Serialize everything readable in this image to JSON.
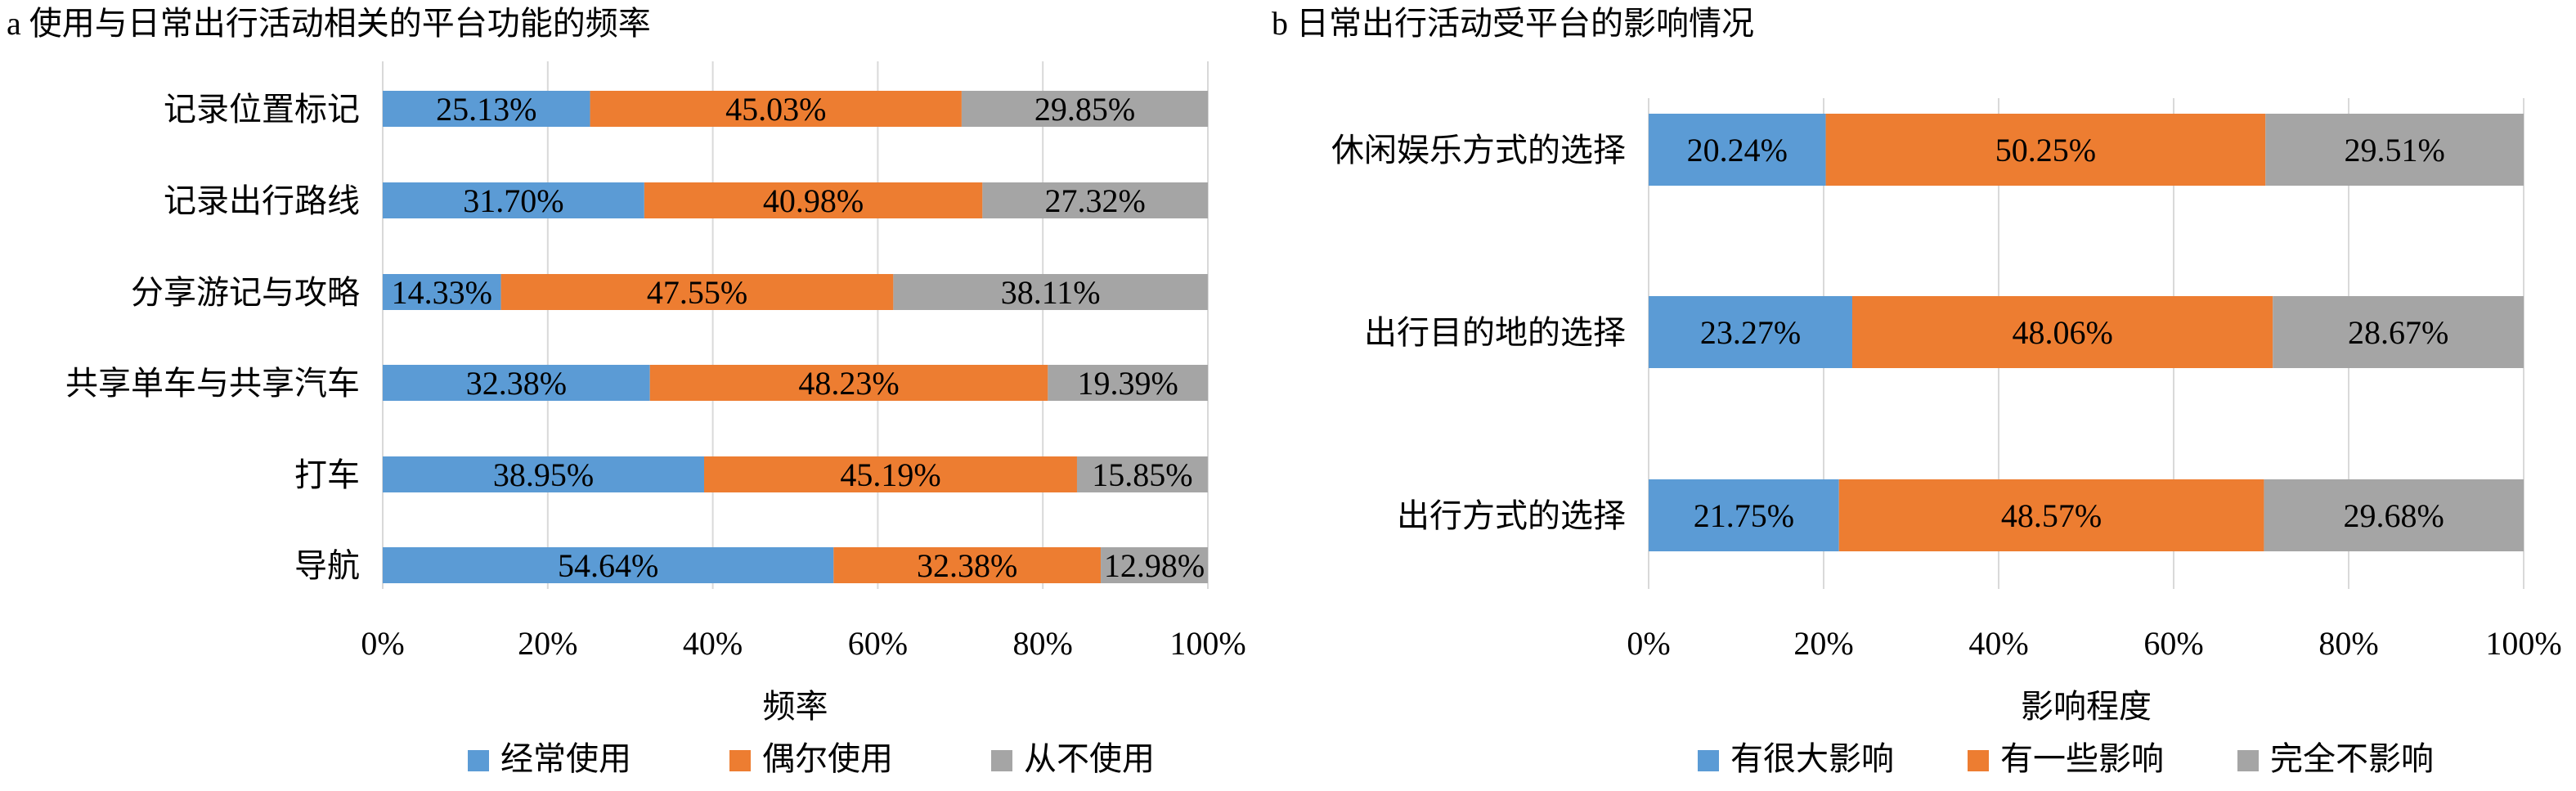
{
  "chart_data": [
    {
      "type": "bar",
      "stacked": "percent",
      "orientation": "horizontal",
      "title": "a 使用与日常出行活动相关的平台功能的频率",
      "xlabel": "频率",
      "ylabel": "",
      "xlim": [
        0,
        100
      ],
      "x_ticks": [
        "0%",
        "20%",
        "40%",
        "60%",
        "80%",
        "100%"
      ],
      "grid": "vertical",
      "legend_position": "bottom",
      "categories": [
        "记录位置标记",
        "记录出行路线",
        "分享游记与攻略",
        "共享单车与共享汽车",
        "打车",
        "导航"
      ],
      "series": [
        {
          "name": "经常使用",
          "color": "#5b9bd5",
          "values": [
            25.13,
            31.7,
            14.33,
            32.38,
            38.95,
            54.64
          ],
          "labels": [
            "25.13%",
            "31.70%",
            "14.33%",
            "32.38%",
            "38.95%",
            "54.64%"
          ]
        },
        {
          "name": "偶尔使用",
          "color": "#ed7d31",
          "values": [
            45.03,
            40.98,
            47.55,
            48.23,
            45.19,
            32.38
          ],
          "labels": [
            "45.03%",
            "40.98%",
            "47.55%",
            "48.23%",
            "45.19%",
            "32.38%"
          ]
        },
        {
          "name": "从不使用",
          "color": "#a5a5a5",
          "values": [
            29.85,
            27.32,
            38.11,
            19.39,
            15.85,
            12.98
          ],
          "labels": [
            "29.85%",
            "27.32%",
            "38.11%",
            "19.39%",
            "15.85%",
            "12.98%"
          ]
        }
      ]
    },
    {
      "type": "bar",
      "stacked": "percent",
      "orientation": "horizontal",
      "title": "b 日常出行活动受平台的影响情况",
      "xlabel": "影响程度",
      "ylabel": "",
      "xlim": [
        0,
        100
      ],
      "x_ticks": [
        "0%",
        "20%",
        "40%",
        "60%",
        "80%",
        "100%"
      ],
      "grid": "vertical",
      "legend_position": "bottom",
      "categories": [
        "休闲娱乐方式的选择",
        "出行目的地的选择",
        "出行方式的选择"
      ],
      "series": [
        {
          "name": "有很大影响",
          "color": "#5b9bd5",
          "values": [
            20.24,
            23.27,
            21.75
          ],
          "labels": [
            "20.24%",
            "23.27%",
            "21.75%"
          ]
        },
        {
          "name": "有一些影响",
          "color": "#ed7d31",
          "values": [
            50.25,
            48.06,
            48.57
          ],
          "labels": [
            "50.25%",
            "48.06%",
            "48.57%"
          ]
        },
        {
          "name": "完全不影响",
          "color": "#a5a5a5",
          "values": [
            29.51,
            28.67,
            29.68
          ],
          "labels": [
            "29.51%",
            "28.67%",
            "29.68%"
          ]
        }
      ]
    }
  ]
}
